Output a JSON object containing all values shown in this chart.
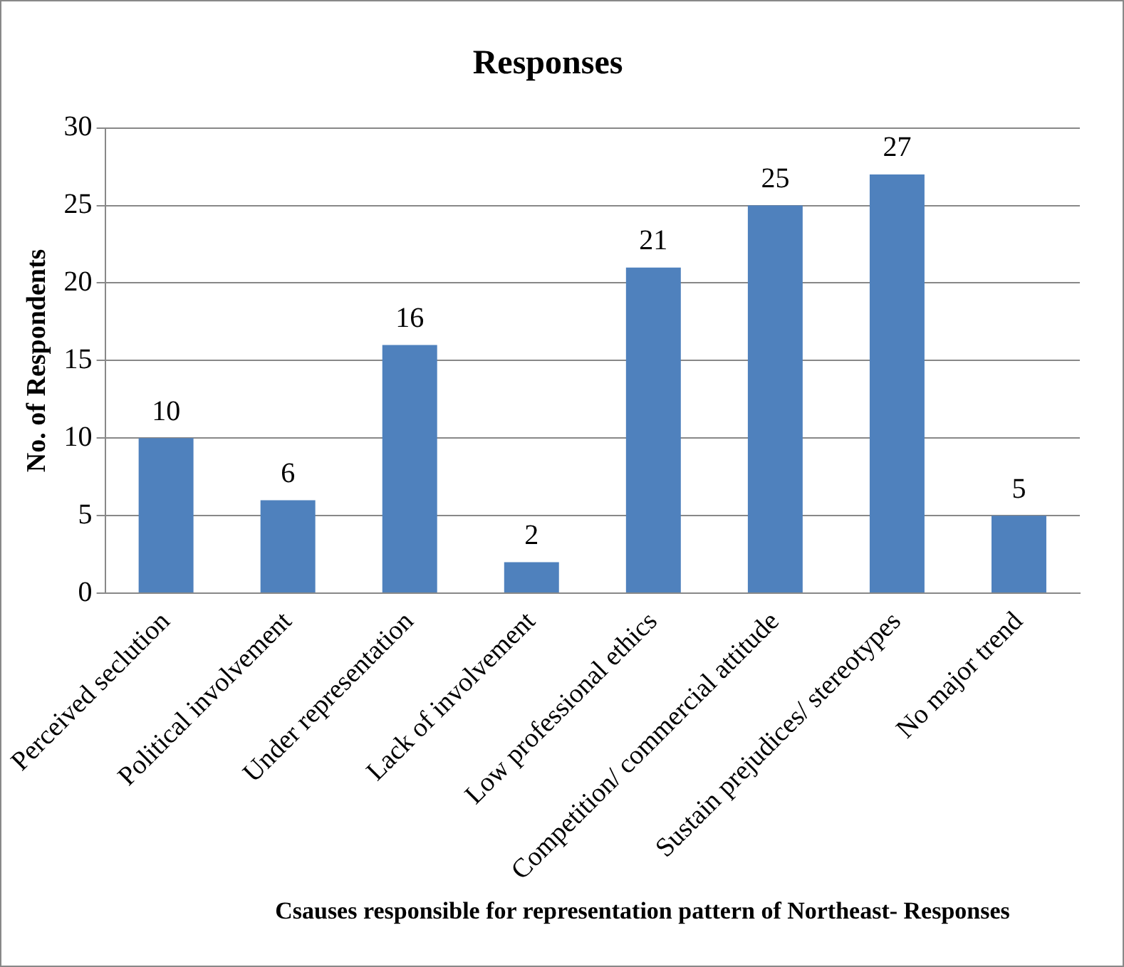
{
  "chart_data": {
    "type": "bar",
    "title": "Responses",
    "xlabel": "Csauses responsible for representation pattern of Northeast- Responses",
    "ylabel": "No. of Respondents",
    "categories": [
      "Perceived seclution",
      "Political involvement",
      "Under representation",
      "Lack of involvement",
      "Low professional ethics",
      "Competition/ commercial attitude",
      "Sustain prejudices/ stereotypes",
      "No major trend"
    ],
    "values": [
      10,
      6,
      16,
      2,
      21,
      25,
      27,
      5
    ],
    "color": "#4f81bd",
    "ylim": [
      0,
      30
    ],
    "yticks": [
      0,
      5,
      10,
      15,
      20,
      25,
      30
    ],
    "grid": "y",
    "data_labels": true,
    "legend": false
  }
}
